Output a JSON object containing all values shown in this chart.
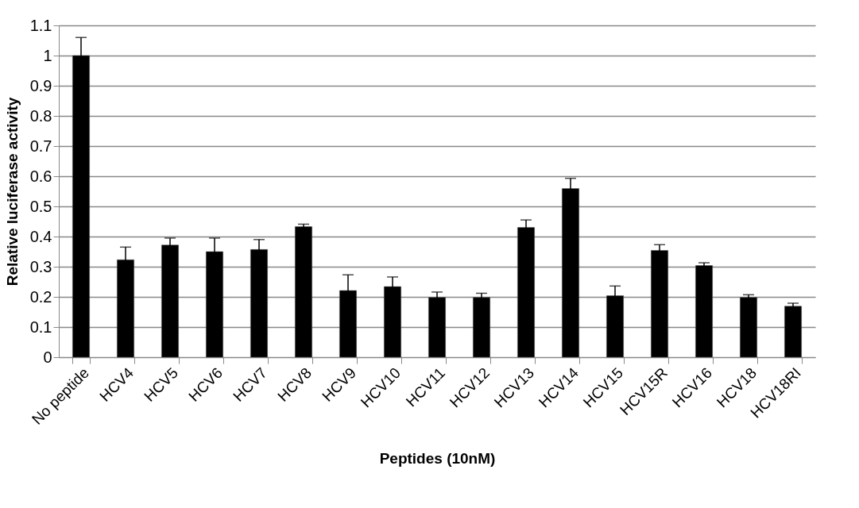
{
  "chart_data": {
    "type": "bar",
    "xlabel": "Peptides (10nM)",
    "ylabel": "Relative luciferase activity",
    "categories": [
      "No peptide",
      "HCV4",
      "HCV5",
      "HCV6",
      "HCV7",
      "HCV8",
      "HCV9",
      "HCV10",
      "HCV11",
      "HCV12",
      "HCV13",
      "HCV14",
      "HCV15",
      "HCV15R",
      "HCV16",
      "HCV18",
      "HCV18RI"
    ],
    "values": [
      1.0,
      0.323,
      0.372,
      0.35,
      0.357,
      0.433,
      0.221,
      0.234,
      0.198,
      0.198,
      0.43,
      0.559,
      0.204,
      0.354,
      0.304,
      0.198,
      0.169
    ],
    "errors": [
      0.06,
      0.042,
      0.023,
      0.045,
      0.033,
      0.008,
      0.052,
      0.032,
      0.018,
      0.014,
      0.025,
      0.034,
      0.032,
      0.019,
      0.009,
      0.009,
      0.01
    ],
    "color": "#000000",
    "ylim": [
      0,
      1.1
    ],
    "yticks": [
      0,
      0.1,
      0.2,
      0.3,
      0.4,
      0.5,
      0.6,
      0.7,
      0.8,
      0.9,
      1,
      1.1
    ],
    "grid": "y"
  }
}
